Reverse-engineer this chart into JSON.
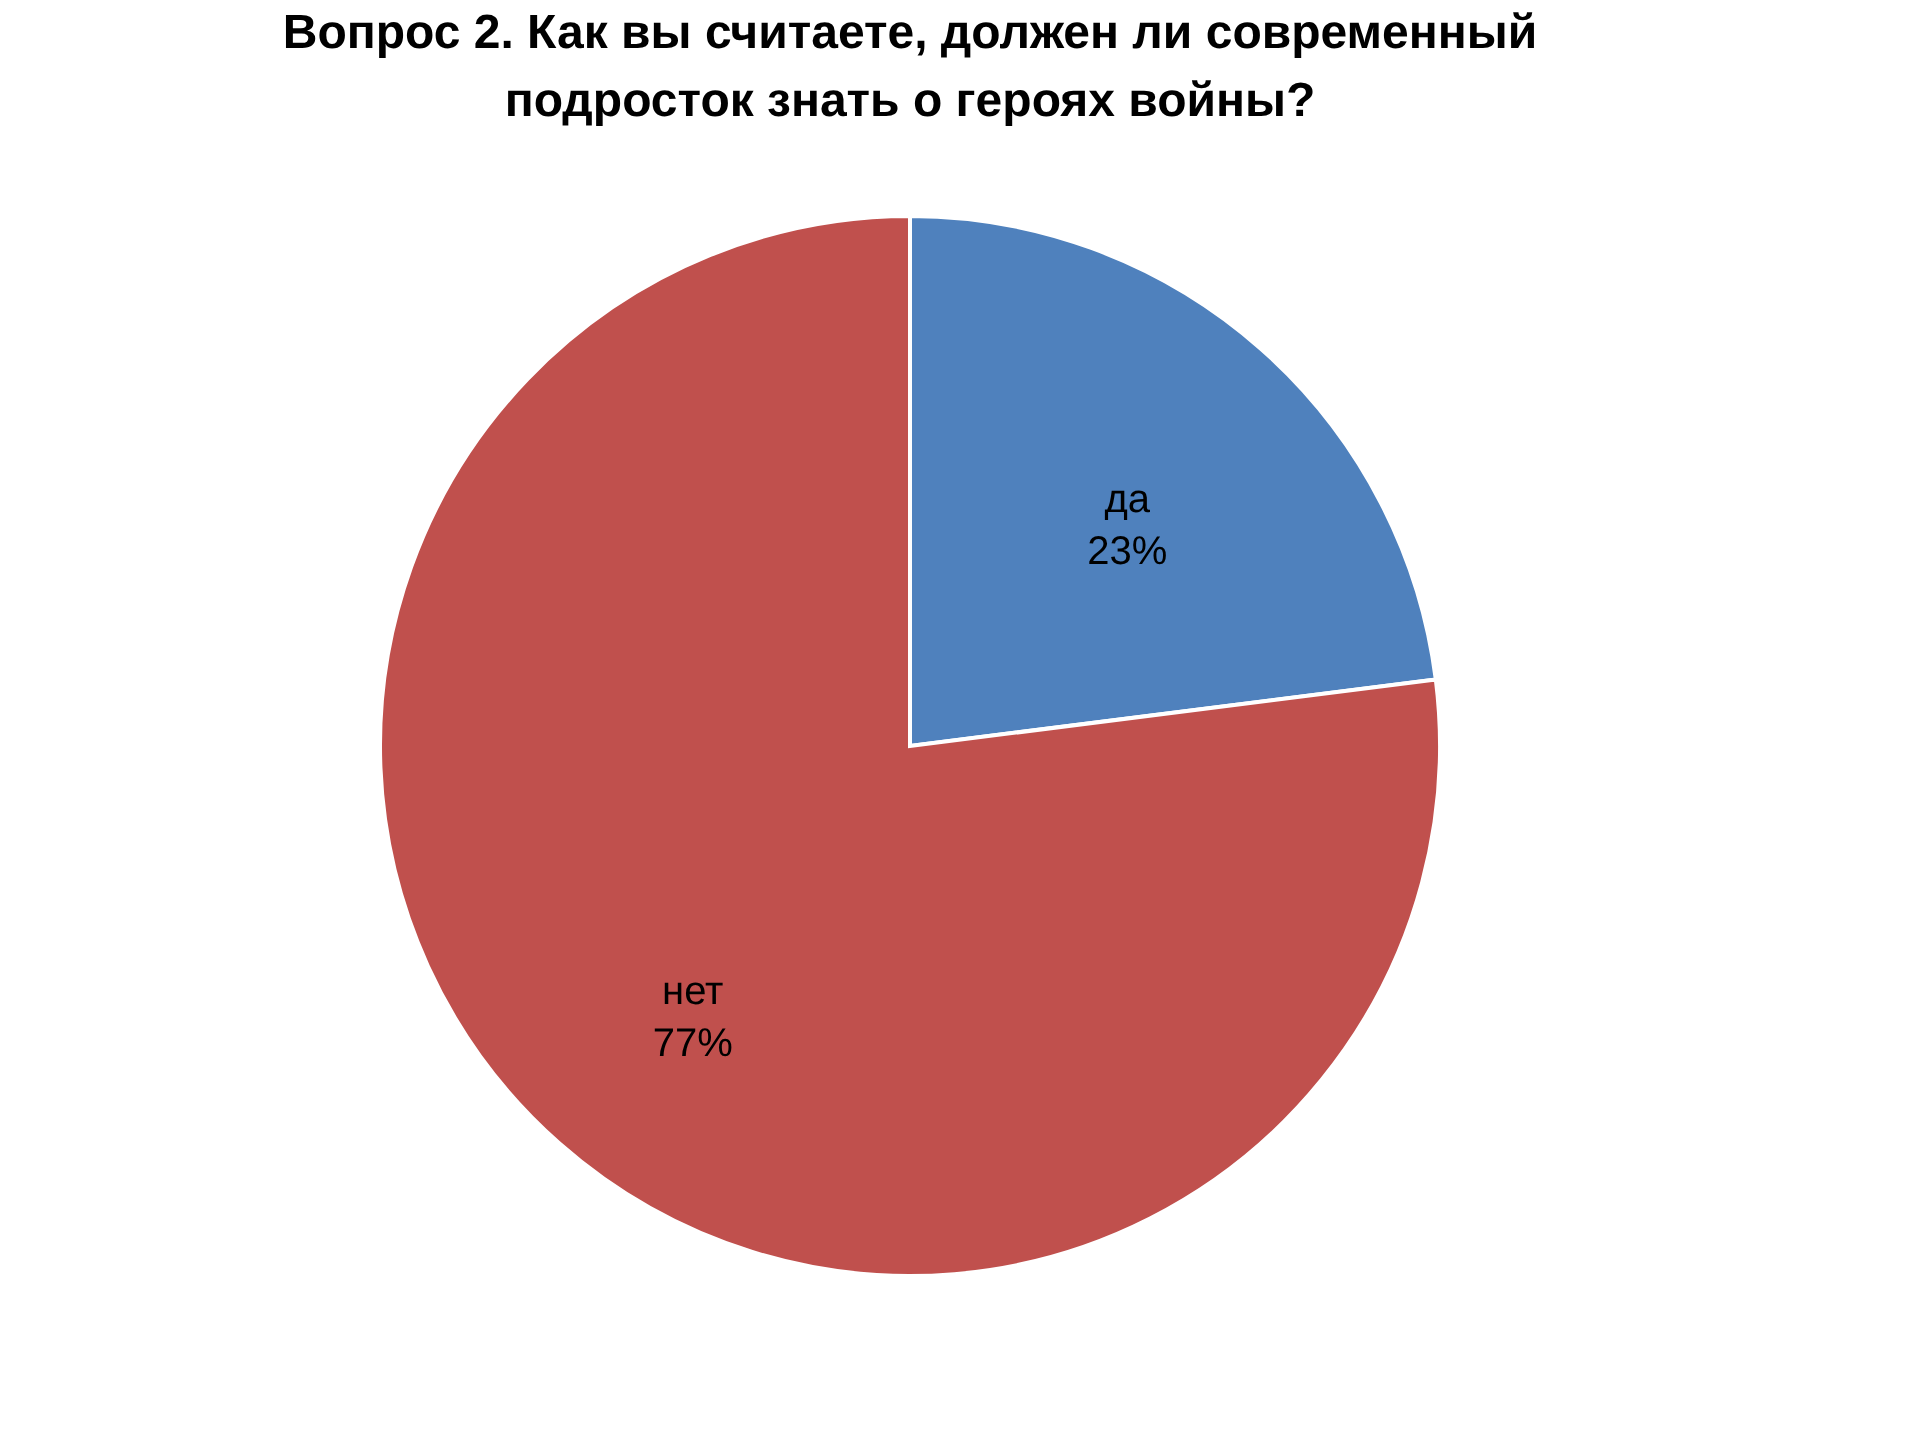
{
  "chart_data": {
    "type": "pie",
    "title": "Вопрос 2. Как вы считаете, должен ли современный\nподросток знать о героях войны?",
    "categories": [
      "да",
      "нет"
    ],
    "values": [
      23,
      77
    ],
    "colors": [
      "#4f81bd",
      "#c0504d"
    ],
    "value_labels": [
      "23%",
      "77%"
    ],
    "legend": false
  }
}
